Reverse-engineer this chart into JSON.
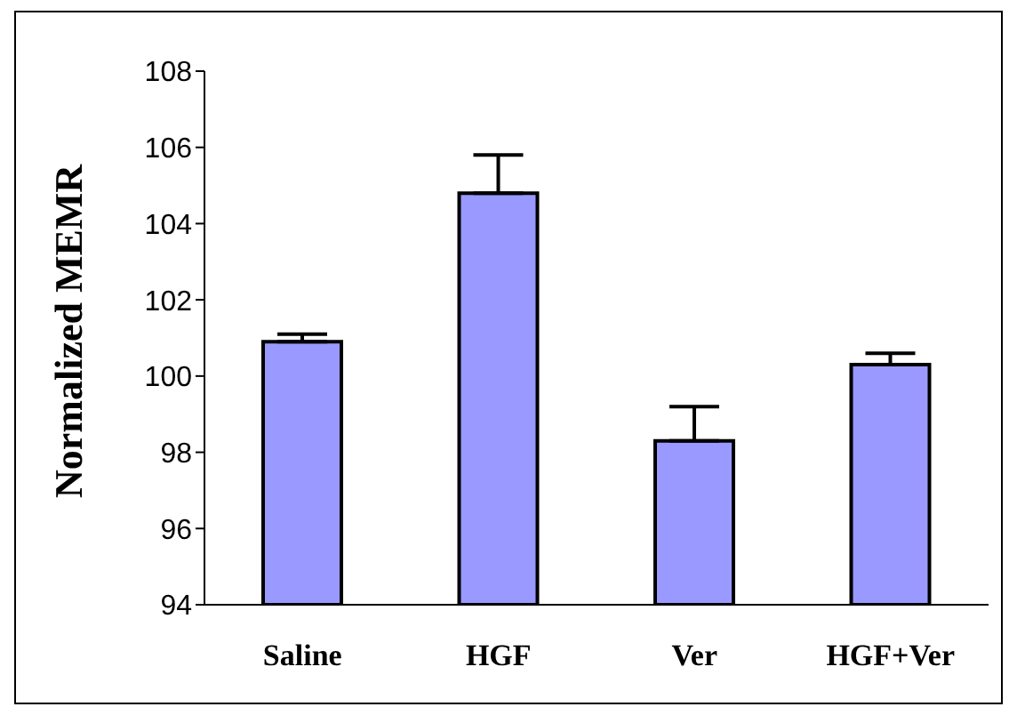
{
  "chart_data": {
    "type": "bar",
    "ylabel": "Normalized MEMR",
    "categories": [
      "Saline",
      "HGF",
      "Ver",
      "HGF+Ver"
    ],
    "values": [
      100.9,
      104.8,
      98.3,
      100.3
    ],
    "color": "#9999ff",
    "errors": [
      [
        100.9,
        101.1
      ],
      [
        104.8,
        105.8
      ],
      [
        98.3,
        99.2
      ],
      [
        100.3,
        100.6
      ]
    ],
    "ylim": [
      94,
      108
    ],
    "yticks": [
      94,
      96,
      98,
      100,
      102,
      104,
      106,
      108
    ],
    "grid": false,
    "legend": false
  }
}
